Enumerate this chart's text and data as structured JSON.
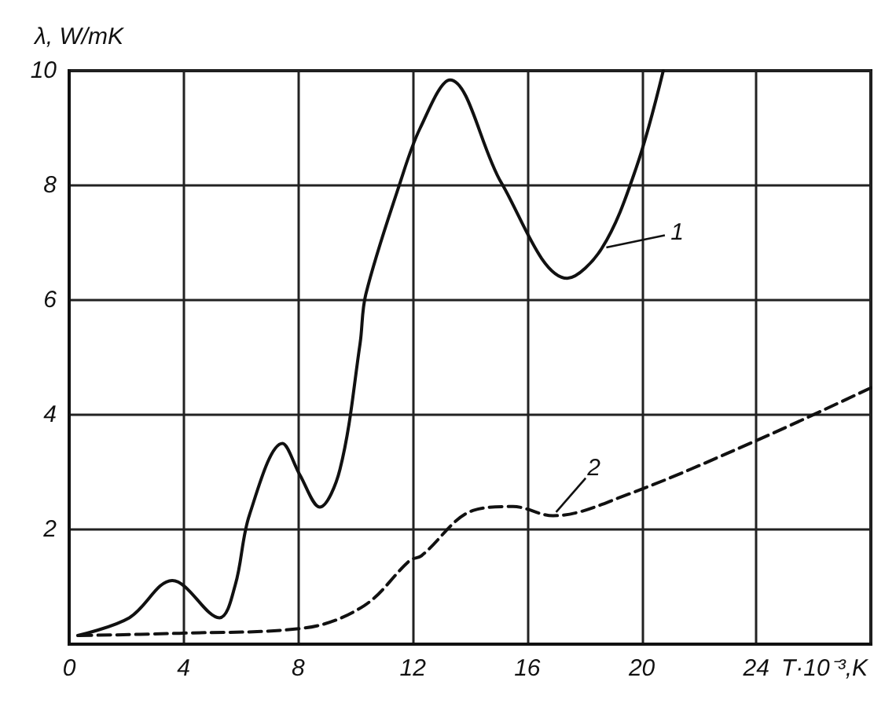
{
  "chart_data": {
    "type": "line",
    "ylabel": "λ, W/mK",
    "xlabel": "T·10⁻³,K",
    "xlim": [
      0,
      28
    ],
    "xticks": [
      0,
      4,
      8,
      12,
      16,
      20,
      24
    ],
    "ylim": [
      0,
      10
    ],
    "yticks": [
      {
        "value": 0,
        "label": null
      },
      2,
      4,
      6,
      8,
      10
    ],
    "grid": true,
    "marker": "none",
    "series": [
      {
        "color": "#111111",
        "line_style": "solid",
        "x": [
          0.3,
          2.1,
          3.6,
          5.25,
          5.8,
          6.3,
          7.45,
          8.05,
          8.75,
          9.46,
          10.16,
          10.36,
          11.56,
          12.26,
          13.3,
          15.1,
          17.4,
          18.6,
          19.8,
          20.75
        ],
        "values": [
          0.15,
          0.46,
          1.11,
          0.46,
          1.03,
          2.26,
          3.5,
          2.96,
          2.39,
          3.05,
          5.24,
          6.1,
          8.05,
          9.0,
          9.84,
          8.04,
          6.38,
          6.9,
          8.3,
          10
        ]
      },
      {
        "color": "#111111",
        "line_style": "dashed",
        "x": [
          0.35,
          3.85,
          8.2,
          10.3,
          11.9,
          12.3,
          14.1,
          15.5,
          16.9,
          19.4,
          24,
          28
        ],
        "values": [
          0.15,
          0.19,
          0.28,
          0.67,
          1.46,
          1.54,
          2.33,
          2.4,
          2.24,
          2.59,
          3.55,
          4.47
        ]
      }
    ],
    "annotations": [
      {
        "text": "1",
        "x": 18.6,
        "y": 6.9
      },
      {
        "text": "2",
        "x": 16.9,
        "y": 2.24
      }
    ]
  }
}
